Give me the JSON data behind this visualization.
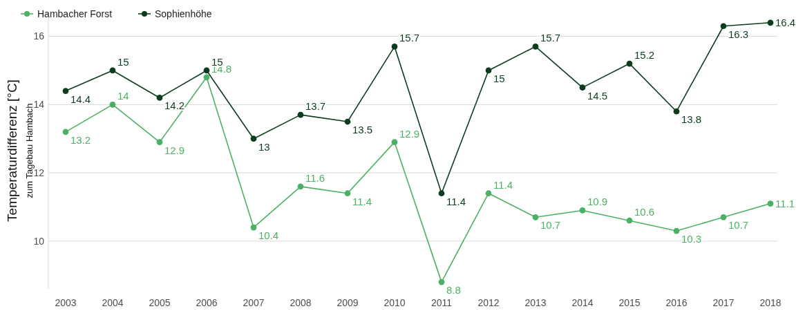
{
  "chart_data": {
    "type": "line",
    "ylabel": "Temperaturdifferenz [°C]$_{zum Tagebau Hambach}$",
    "categories": [
      "2003",
      "2004",
      "2005",
      "2006",
      "2007",
      "2008",
      "2009",
      "2010",
      "2011",
      "2012",
      "2013",
      "2014",
      "2015",
      "2016",
      "2017",
      "2018"
    ],
    "series": [
      {
        "name": "Hambacher Forst",
        "color": "#4cb064",
        "values": [
          13.2,
          14,
          12.9,
          14.8,
          10.4,
          11.6,
          11.4,
          12.9,
          8.8,
          11.4,
          10.7,
          10.9,
          10.6,
          10.3,
          10.7,
          11.1
        ]
      },
      {
        "name": "Sophienhöhe",
        "color": "#0d3b1e",
        "values": [
          14.4,
          15,
          14.2,
          15,
          13,
          13.7,
          13.5,
          15.7,
          11.4,
          15,
          15.7,
          14.5,
          15.2,
          13.8,
          16.3,
          16.4
        ]
      }
    ],
    "ylim": [
      8.6,
      16.7
    ],
    "yticks": [
      10,
      12,
      14,
      16
    ],
    "grid": "y",
    "legend": "top left",
    "marker": "circle",
    "line_style": "solid",
    "data_labels": true
  }
}
